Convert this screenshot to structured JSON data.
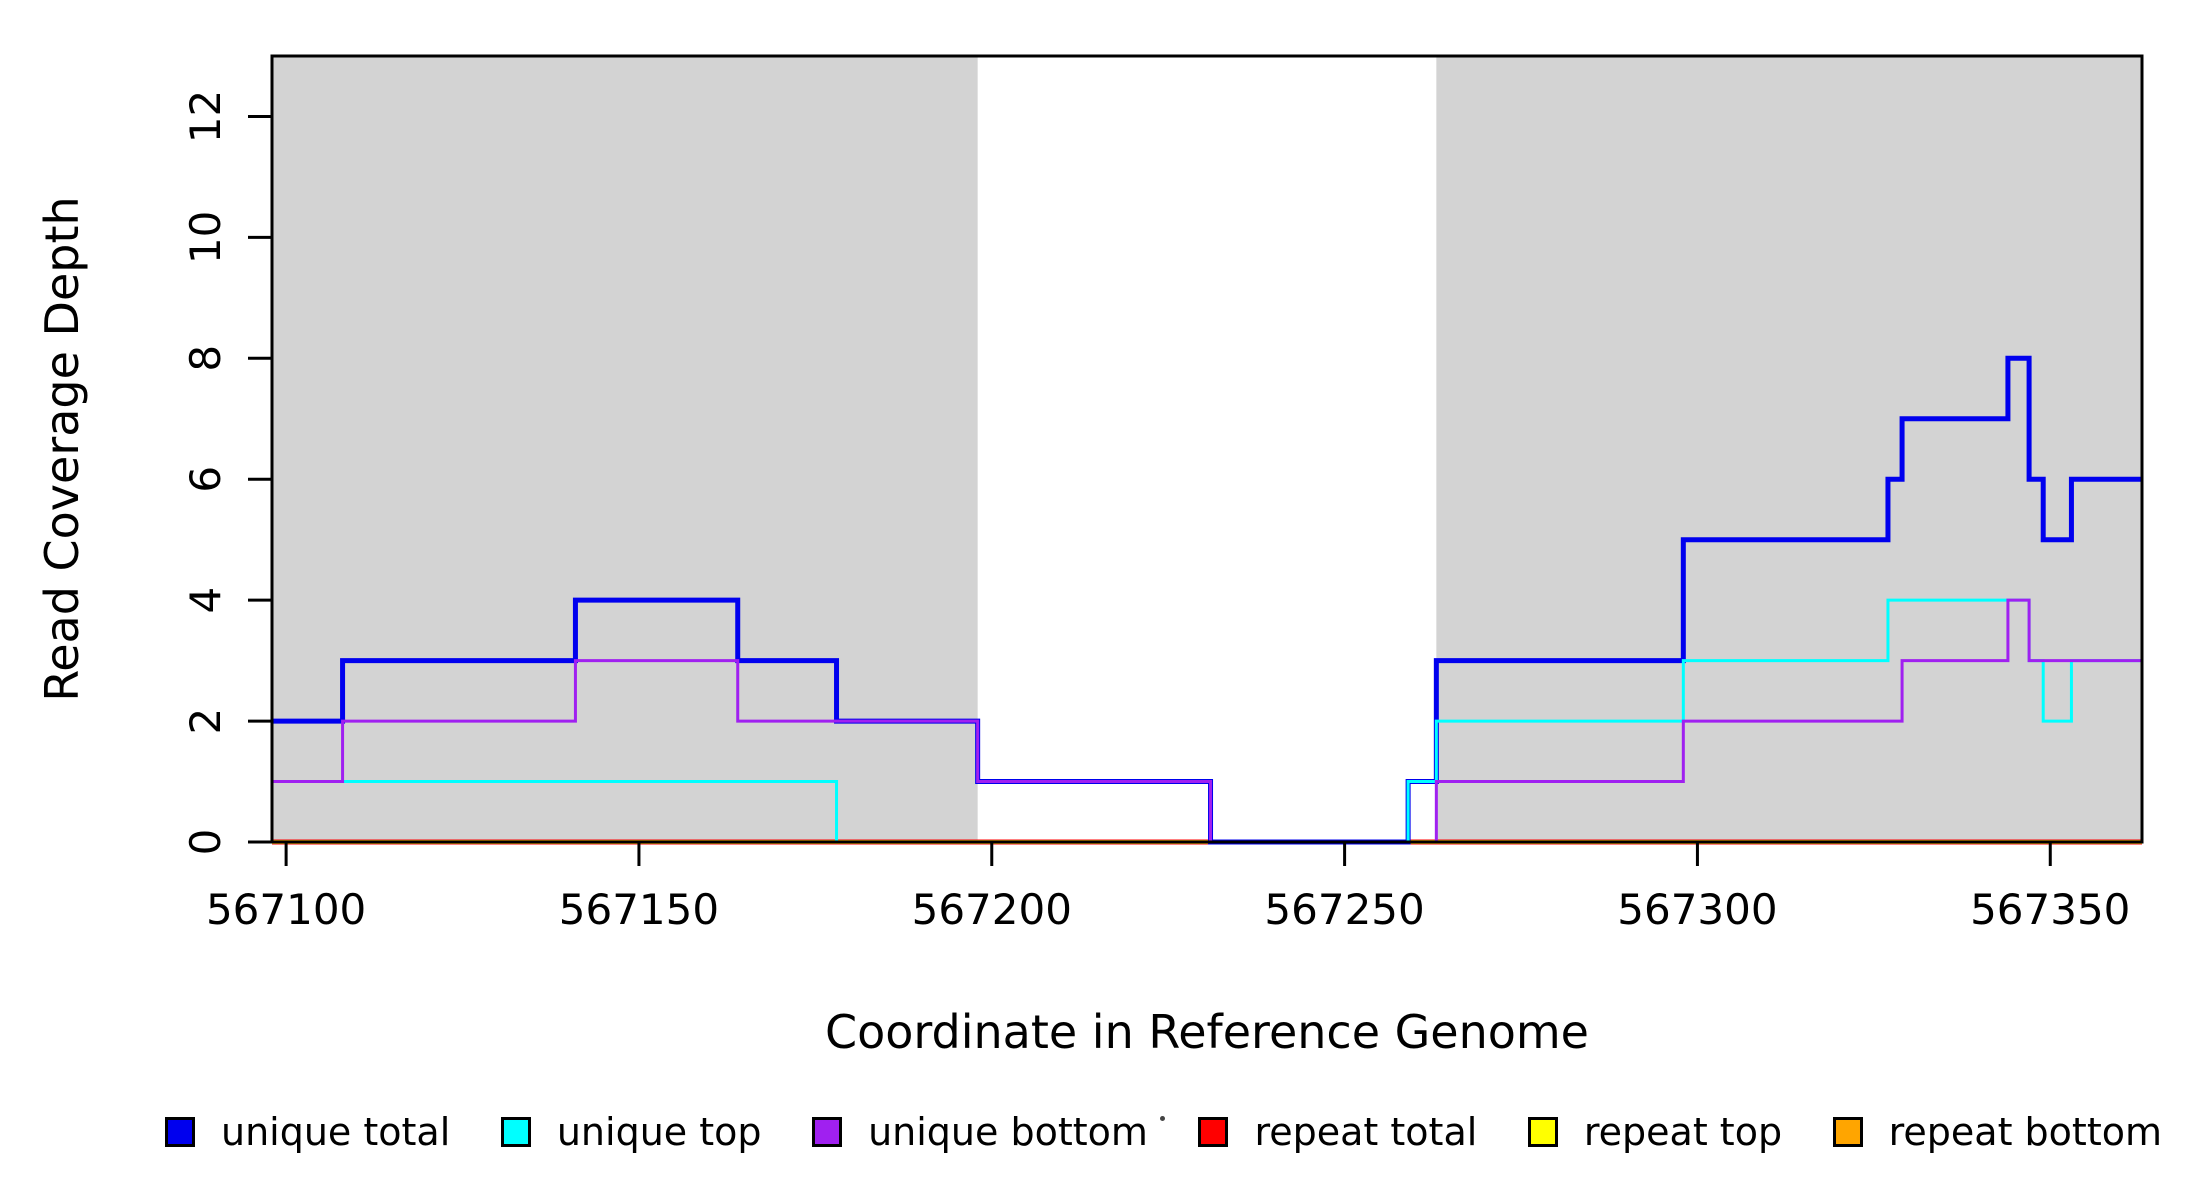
{
  "chart_data": {
    "type": "line",
    "subtype": "step",
    "title": "",
    "xlabel": "Coordinate in Reference Genome",
    "ylabel": "Read Coverage Depth",
    "xlim": [
      567098,
      567363
    ],
    "ylim": [
      0,
      13
    ],
    "x_ticks": [
      567100,
      567150,
      567200,
      567250,
      567300,
      567350
    ],
    "y_ticks": [
      0,
      2,
      4,
      6,
      8,
      10,
      12
    ],
    "grid": false,
    "legend_position": "bottom-horizontal",
    "shade_color": "#D3D3D3",
    "shaded_regions": [
      {
        "x0": 567098,
        "x1": 567198
      },
      {
        "x0": 567263,
        "x1": 567363
      }
    ],
    "end_x": 567363,
    "draw_order": [
      3,
      4,
      5,
      0,
      1,
      2
    ],
    "series": [
      {
        "name": "unique total",
        "color": "#0000EE",
        "width": 5,
        "steps": [
          [
            567098,
            2
          ],
          [
            567108,
            3
          ],
          [
            567141,
            4
          ],
          [
            567164,
            3
          ],
          [
            567178,
            2
          ],
          [
            567198,
            1
          ],
          [
            567231,
            0
          ],
          [
            567259,
            1
          ],
          [
            567263,
            3
          ],
          [
            567298,
            5
          ],
          [
            567327,
            6
          ],
          [
            567329,
            7
          ],
          [
            567344,
            8
          ],
          [
            567347,
            6
          ],
          [
            567349,
            5
          ],
          [
            567353,
            6
          ]
        ]
      },
      {
        "name": "unique top",
        "color": "#00FFFF",
        "width": 3,
        "steps": [
          [
            567098,
            1
          ],
          [
            567178,
            0
          ],
          [
            567259,
            1
          ],
          [
            567263,
            2
          ],
          [
            567298,
            3
          ],
          [
            567327,
            4
          ],
          [
            567347,
            3
          ],
          [
            567349,
            2
          ],
          [
            567353,
            3
          ]
        ]
      },
      {
        "name": "unique bottom",
        "color": "#A020F0",
        "width": 3,
        "steps": [
          [
            567098,
            1
          ],
          [
            567108,
            2
          ],
          [
            567141,
            3
          ],
          [
            567164,
            2
          ],
          [
            567198,
            1
          ],
          [
            567231,
            0
          ],
          [
            567263,
            1
          ],
          [
            567298,
            2
          ],
          [
            567329,
            3
          ],
          [
            567344,
            4
          ],
          [
            567347,
            3
          ]
        ]
      },
      {
        "name": "repeat total",
        "color": "#FF0000",
        "width": 5,
        "steps": [
          [
            567098,
            0
          ]
        ]
      },
      {
        "name": "repeat top",
        "color": "#FFFF00",
        "width": 3,
        "steps": [
          [
            567098,
            0
          ]
        ]
      },
      {
        "name": "repeat bottom",
        "color": "#FFA500",
        "width": 4,
        "steps": [
          [
            567098,
            0
          ]
        ]
      }
    ]
  }
}
